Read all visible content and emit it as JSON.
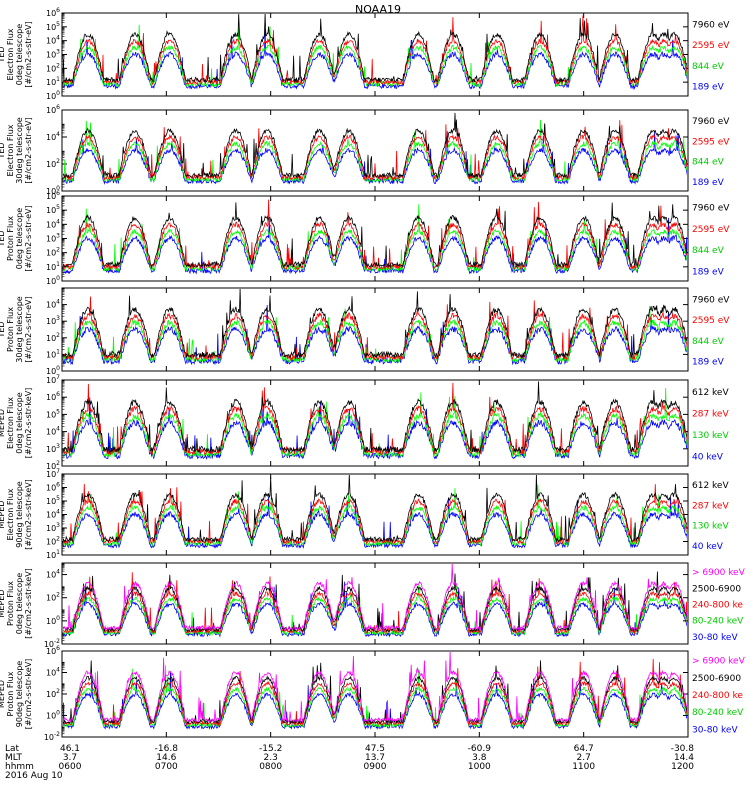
{
  "title": "NOAA19",
  "colors": {
    "black": "#000000",
    "blue": "#0000ff",
    "red": "#ff0000",
    "green": "#00ff00",
    "magenta": "#ff00ff",
    "background": "#ffffff"
  },
  "x_axis": {
    "row_labels": [
      "Lat",
      "MLT",
      "hhmm",
      "2016 Aug 10"
    ],
    "time_range": [
      "0600",
      "1200"
    ],
    "ticks": [
      {
        "time": "0600",
        "lat": "46.1",
        "mlt": "3.7",
        "hhmm": "0600"
      },
      {
        "time": "0700",
        "lat": "-16.8",
        "mlt": "14.6",
        "hhmm": "0700"
      },
      {
        "time": "0800",
        "lat": "-15.2",
        "mlt": "2.3",
        "hhmm": "0800"
      },
      {
        "time": "0900",
        "lat": "47.5",
        "mlt": "13.7",
        "hhmm": "0900"
      },
      {
        "time": "1000",
        "lat": "-60.9",
        "mlt": "3.8",
        "hhmm": "1000"
      },
      {
        "time": "1100",
        "lat": "64.7",
        "mlt": "2.7",
        "hhmm": "1100"
      },
      {
        "time": "1200",
        "lat": "-30.8",
        "mlt": "14.4",
        "hhmm": "1200"
      }
    ]
  },
  "chart_data": [
    {
      "type": "line",
      "ylabel": [
        "TED",
        "Electron Flux",
        "0deg telescope",
        "[#/cm2-s-str-eV]"
      ],
      "yscale": "log",
      "ylim": [
        1,
        1000000
      ],
      "ytick_exponents": [
        0,
        1,
        2,
        3,
        4,
        5,
        6
      ],
      "series": [
        {
          "name": "7960 eV",
          "color": "#000000"
        },
        {
          "name": "2595 eV",
          "color": "#ff0000"
        },
        {
          "name": "844 eV",
          "color": "#00ff00"
        },
        {
          "name": "189 eV",
          "color": "#0000ff"
        }
      ]
    },
    {
      "type": "line",
      "ylabel": [
        "TED",
        "Electron Flux",
        "30deg telescope",
        "[#/cm2-s-str-eV]"
      ],
      "yscale": "log",
      "ylim": [
        1,
        1000000
      ],
      "ytick_exponents": [
        0,
        2,
        4,
        6
      ],
      "series": [
        {
          "name": "7960 eV",
          "color": "#000000"
        },
        {
          "name": "2595 eV",
          "color": "#ff0000"
        },
        {
          "name": "844 eV",
          "color": "#00ff00"
        },
        {
          "name": "189 eV",
          "color": "#0000ff"
        }
      ]
    },
    {
      "type": "line",
      "ylabel": [
        "TED",
        "Proton Flux",
        "0deg telescope",
        "[#/cm2-s-str-eV]"
      ],
      "yscale": "log",
      "ylim": [
        1,
        1000000
      ],
      "ytick_exponents": [
        0,
        1,
        2,
        3,
        4,
        5,
        6
      ],
      "series": [
        {
          "name": "7960 eV",
          "color": "#000000"
        },
        {
          "name": "2595 eV",
          "color": "#ff0000"
        },
        {
          "name": "844 eV",
          "color": "#00ff00"
        },
        {
          "name": "189 eV",
          "color": "#0000ff"
        }
      ]
    },
    {
      "type": "line",
      "ylabel": [
        "TED",
        "Proton Flux",
        "30deg telescope",
        "[#/cm2-s-str-eV]"
      ],
      "yscale": "log",
      "ylim": [
        1,
        100000
      ],
      "ytick_exponents": [
        0,
        1,
        2,
        3,
        4
      ],
      "series": [
        {
          "name": "7960 eV",
          "color": "#000000"
        },
        {
          "name": "2595 eV",
          "color": "#ff0000"
        },
        {
          "name": "844 eV",
          "color": "#00ff00"
        },
        {
          "name": "189 eV",
          "color": "#0000ff"
        }
      ]
    },
    {
      "type": "line",
      "ylabel": [
        "MEPED",
        "Electron Flux",
        "0deg telescope",
        "[#/cm2-s-str-keV]"
      ],
      "yscale": "log",
      "ylim": [
        100,
        10000000
      ],
      "ytick_exponents": [
        2,
        3,
        4,
        5,
        6,
        7
      ],
      "series": [
        {
          "name": "612 keV",
          "color": "#000000"
        },
        {
          "name": "287 keV",
          "color": "#ff0000"
        },
        {
          "name": "130 keV",
          "color": "#00ff00"
        },
        {
          "name": "40 keV",
          "color": "#0000ff"
        }
      ]
    },
    {
      "type": "line",
      "ylabel": [
        "MEPED",
        "Electron Flux",
        "90deg telescope",
        "[#/cm2-s-str-keV]"
      ],
      "yscale": "log",
      "ylim": [
        10,
        10000000
      ],
      "ytick_exponents": [
        1,
        2,
        3,
        4,
        5,
        6,
        7
      ],
      "series": [
        {
          "name": "612 keV",
          "color": "#000000"
        },
        {
          "name": "287 keV",
          "color": "#ff0000"
        },
        {
          "name": "130 keV",
          "color": "#00ff00"
        },
        {
          "name": "40 keV",
          "color": "#0000ff"
        }
      ]
    },
    {
      "type": "line",
      "ylabel": [
        "MEPED",
        "Proton Flux",
        "0deg telescope",
        "[#/cm2-s-str-keV]"
      ],
      "yscale": "log",
      "ylim": [
        0.01,
        100000
      ],
      "ytick_exponents": [
        -2,
        0,
        2,
        4
      ],
      "series": [
        {
          "name": "> 6900 keV",
          "color": "#ff00ff"
        },
        {
          "name": "2500-6900",
          "color": "#000000"
        },
        {
          "name": "240-800 ke",
          "color": "#ff0000"
        },
        {
          "name": "80-240 keV",
          "color": "#00ff00"
        },
        {
          "name": "30-80 keV",
          "color": "#0000ff"
        }
      ]
    },
    {
      "type": "line",
      "ylabel": [
        "MEPED",
        "Proton Flux",
        "90deg telescope",
        "[#/cm2-s-str-keV]"
      ],
      "yscale": "log",
      "ylim": [
        0.01,
        1000000
      ],
      "ytick_exponents": [
        -2,
        0,
        2,
        4,
        6
      ],
      "series": [
        {
          "name": "> 6900 keV",
          "color": "#ff00ff"
        },
        {
          "name": "2500-6900",
          "color": "#000000"
        },
        {
          "name": "240-800 ke",
          "color": "#ff0000"
        },
        {
          "name": "80-240 keV",
          "color": "#00ff00"
        },
        {
          "name": "30-80 keV",
          "color": "#0000ff"
        }
      ]
    }
  ]
}
